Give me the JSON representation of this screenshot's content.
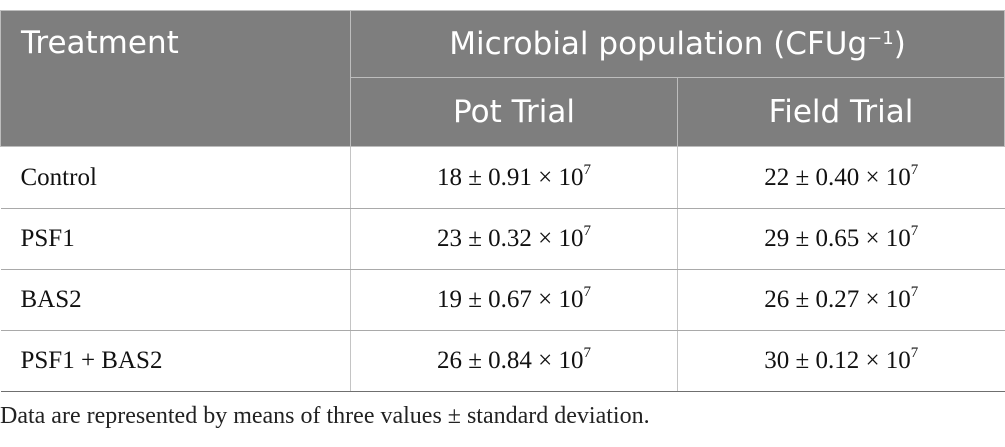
{
  "table": {
    "header": {
      "treatment": "Treatment",
      "group_label": "Microbial population (CFUg",
      "group_label_sup": "−1",
      "group_label_close": ")",
      "sub_columns": [
        "Pot Trial",
        "Field Trial"
      ]
    },
    "rows": [
      {
        "treatment": "Control",
        "pot": {
          "value": "18 ± 0.91 × 10",
          "exp": "7"
        },
        "field": {
          "value": "22 ± 0.40 × 10",
          "exp": "7"
        }
      },
      {
        "treatment": "PSF1",
        "pot": {
          "value": "23 ± 0.32 × 10",
          "exp": "7"
        },
        "field": {
          "value": "29 ± 0.65 × 10",
          "exp": "7"
        }
      },
      {
        "treatment": "BAS2",
        "pot": {
          "value": "19 ± 0.67 × 10",
          "exp": "7"
        },
        "field": {
          "value": "26 ± 0.27 × 10",
          "exp": "7"
        }
      },
      {
        "treatment": "PSF1 + BAS2",
        "pot": {
          "value": "26 ± 0.84 × 10",
          "exp": "7"
        },
        "field": {
          "value": "30 ± 0.12 × 10",
          "exp": "7"
        }
      }
    ]
  },
  "footnote": "Data are represented by means of three values ± standard deviation.",
  "colors": {
    "header_bg": "#7e7e7e",
    "header_text": "#ffffff",
    "body_text": "#111111"
  }
}
